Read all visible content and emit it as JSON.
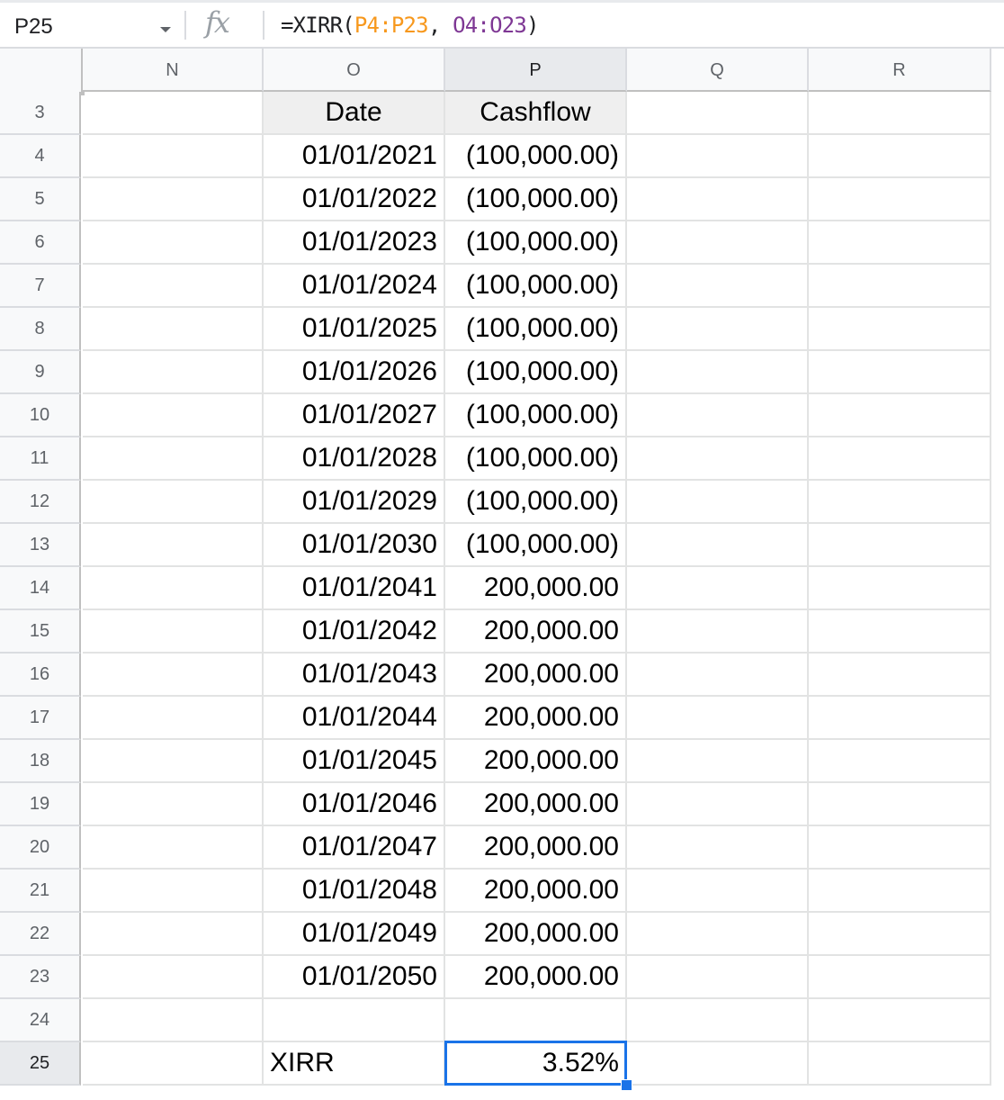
{
  "namebox": {
    "cell": "P25"
  },
  "formula_bar": {
    "fx_icon": "fx",
    "prefix": "=XIRR(",
    "arg1": "P4:P23",
    "sep": ", ",
    "arg2": "O4:O23",
    "suffix": ")"
  },
  "columns": [
    "N",
    "O",
    "P",
    "Q",
    "R"
  ],
  "selected_column": "P",
  "selected_row": "25",
  "rows": [
    {
      "num": "3",
      "date": "Date",
      "cashflow": "Cashflow",
      "header": true
    },
    {
      "num": "4",
      "date": "01/01/2021",
      "cashflow": "(100,000.00)"
    },
    {
      "num": "5",
      "date": "01/01/2022",
      "cashflow": "(100,000.00)"
    },
    {
      "num": "6",
      "date": "01/01/2023",
      "cashflow": "(100,000.00)"
    },
    {
      "num": "7",
      "date": "01/01/2024",
      "cashflow": "(100,000.00)"
    },
    {
      "num": "8",
      "date": "01/01/2025",
      "cashflow": "(100,000.00)"
    },
    {
      "num": "9",
      "date": "01/01/2026",
      "cashflow": "(100,000.00)"
    },
    {
      "num": "10",
      "date": "01/01/2027",
      "cashflow": "(100,000.00)"
    },
    {
      "num": "11",
      "date": "01/01/2028",
      "cashflow": "(100,000.00)"
    },
    {
      "num": "12",
      "date": "01/01/2029",
      "cashflow": "(100,000.00)"
    },
    {
      "num": "13",
      "date": "01/01/2030",
      "cashflow": "(100,000.00)"
    },
    {
      "num": "14",
      "date": "01/01/2041",
      "cashflow": "200,000.00"
    },
    {
      "num": "15",
      "date": "01/01/2042",
      "cashflow": "200,000.00"
    },
    {
      "num": "16",
      "date": "01/01/2043",
      "cashflow": "200,000.00"
    },
    {
      "num": "17",
      "date": "01/01/2044",
      "cashflow": "200,000.00"
    },
    {
      "num": "18",
      "date": "01/01/2045",
      "cashflow": "200,000.00"
    },
    {
      "num": "19",
      "date": "01/01/2046",
      "cashflow": "200,000.00"
    },
    {
      "num": "20",
      "date": "01/01/2047",
      "cashflow": "200,000.00"
    },
    {
      "num": "21",
      "date": "01/01/2048",
      "cashflow": "200,000.00"
    },
    {
      "num": "22",
      "date": "01/01/2049",
      "cashflow": "200,000.00"
    },
    {
      "num": "23",
      "date": "01/01/2050",
      "cashflow": "200,000.00"
    },
    {
      "num": "24",
      "date": "",
      "cashflow": ""
    },
    {
      "num": "25",
      "date": "XIRR",
      "cashflow": "3.52%",
      "label_left": true
    }
  ]
}
